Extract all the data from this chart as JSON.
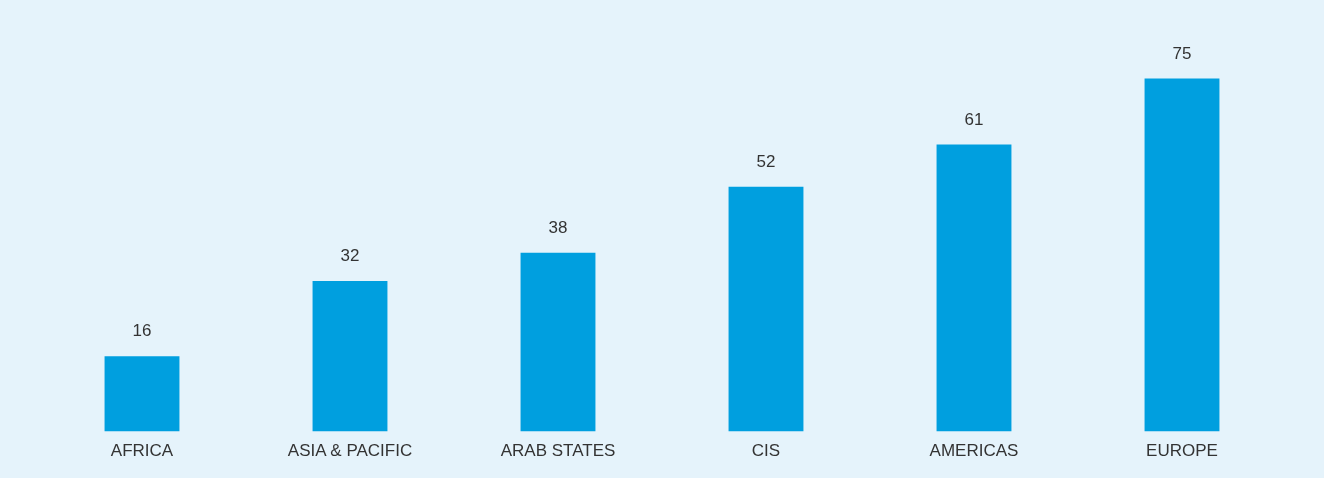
{
  "chart_data": {
    "type": "bar",
    "categories": [
      "AFRICA",
      "ASIA & PACIFIC",
      "ARAB STATES",
      "CIS",
      "AMERICAS",
      "EUROPE"
    ],
    "values": [
      16,
      32,
      38,
      52,
      61,
      75
    ],
    "color": "#009fdf",
    "data_labels": true,
    "grid": false,
    "legend": false
  }
}
